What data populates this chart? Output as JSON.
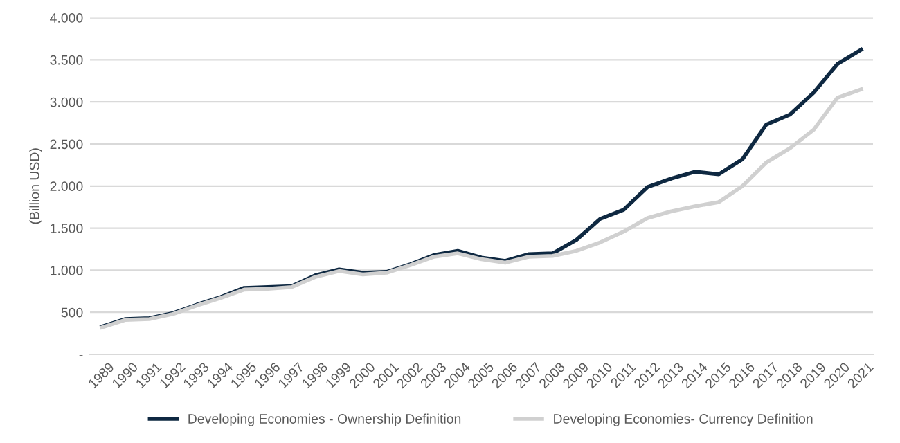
{
  "chart_data": {
    "type": "line",
    "ylabel": "(Billion USD)",
    "categories": [
      "1989",
      "1990",
      "1991",
      "1992",
      "1993",
      "1994",
      "1995",
      "1996",
      "1997",
      "1998",
      "1999",
      "2000",
      "2001",
      "2002",
      "2003",
      "2004",
      "2005",
      "2006",
      "2007",
      "2008",
      "2009",
      "2010",
      "2011",
      "2012",
      "2013",
      "2014",
      "2015",
      "2016",
      "2017",
      "2018",
      "2019",
      "2020",
      "2021"
    ],
    "series": [
      {
        "name": "Developing Economies - Ownership Definition",
        "color": "#0e2841",
        "values": [
          330,
          420,
          430,
          490,
          590,
          680,
          790,
          800,
          810,
          940,
          1010,
          970,
          980,
          1070,
          1180,
          1230,
          1150,
          1110,
          1190,
          1200,
          1360,
          1610,
          1720,
          1990,
          2090,
          2170,
          2140,
          2320,
          2730,
          2850,
          3110,
          3450,
          3620
        ]
      },
      {
        "name": "Developing Economies- Currency Definition",
        "color": "#d0d0d0",
        "values": [
          320,
          410,
          420,
          480,
          580,
          670,
          770,
          780,
          800,
          920,
          990,
          950,
          970,
          1060,
          1160,
          1200,
          1130,
          1090,
          1160,
          1170,
          1230,
          1330,
          1460,
          1620,
          1700,
          1760,
          1810,
          2000,
          2280,
          2450,
          2670,
          3050,
          3150
        ]
      }
    ],
    "ylim": [
      0,
      4000
    ],
    "yticks": [
      {
        "value": 0,
        "label": "-"
      },
      {
        "value": 500,
        "label": "500"
      },
      {
        "value": 1000,
        "label": "1.000"
      },
      {
        "value": 1500,
        "label": "1.500"
      },
      {
        "value": 2000,
        "label": "2.000"
      },
      {
        "value": 2500,
        "label": "2.500"
      },
      {
        "value": 3000,
        "label": "3.000"
      },
      {
        "value": 3500,
        "label": "3.500"
      },
      {
        "value": 4000,
        "label": "4.000"
      }
    ],
    "grid": "y",
    "legend": "bottom",
    "marker": "none",
    "line_style": "solid"
  }
}
